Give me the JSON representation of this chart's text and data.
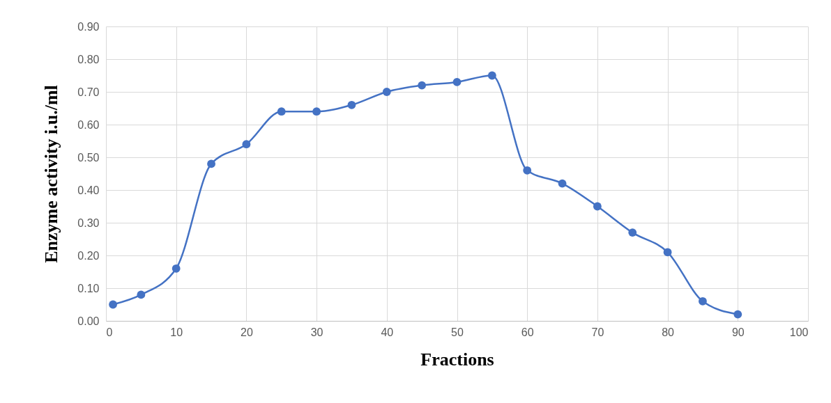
{
  "chart_data": {
    "type": "line",
    "xlabel": "Fractions",
    "ylabel": "Enzyme activity i.u./ml",
    "x": [
      1,
      5,
      10,
      15,
      20,
      25,
      30,
      35,
      40,
      45,
      50,
      55,
      60,
      65,
      70,
      75,
      80,
      85,
      90
    ],
    "series": [
      {
        "color": "#4472c4",
        "values": [
          0.05,
          0.08,
          0.16,
          0.48,
          0.54,
          0.64,
          0.64,
          0.66,
          0.7,
          0.72,
          0.73,
          0.75,
          0.46,
          0.42,
          0.35,
          0.27,
          0.21,
          0.06,
          0.02
        ]
      }
    ],
    "xlim": [
      0,
      100
    ],
    "xticks": [
      0,
      10,
      20,
      30,
      40,
      50,
      60,
      70,
      80,
      90,
      100
    ],
    "ylim": [
      0,
      0.9
    ],
    "yticks": [
      {
        "value": 0,
        "label": "0.00"
      },
      {
        "value": 0.1,
        "label": "0.10"
      },
      {
        "value": 0.2,
        "label": "0.20"
      },
      {
        "value": 0.3,
        "label": "0.30"
      },
      {
        "value": 0.4,
        "label": "0.40"
      },
      {
        "value": 0.5,
        "label": "0.50"
      },
      {
        "value": 0.6,
        "label": "0.60"
      },
      {
        "value": 0.7,
        "label": "0.70"
      },
      {
        "value": 0.8,
        "label": "0.80"
      },
      {
        "value": 0.9,
        "label": "0.90"
      }
    ],
    "grid": true,
    "marker": "circle",
    "line_style": "solid"
  }
}
